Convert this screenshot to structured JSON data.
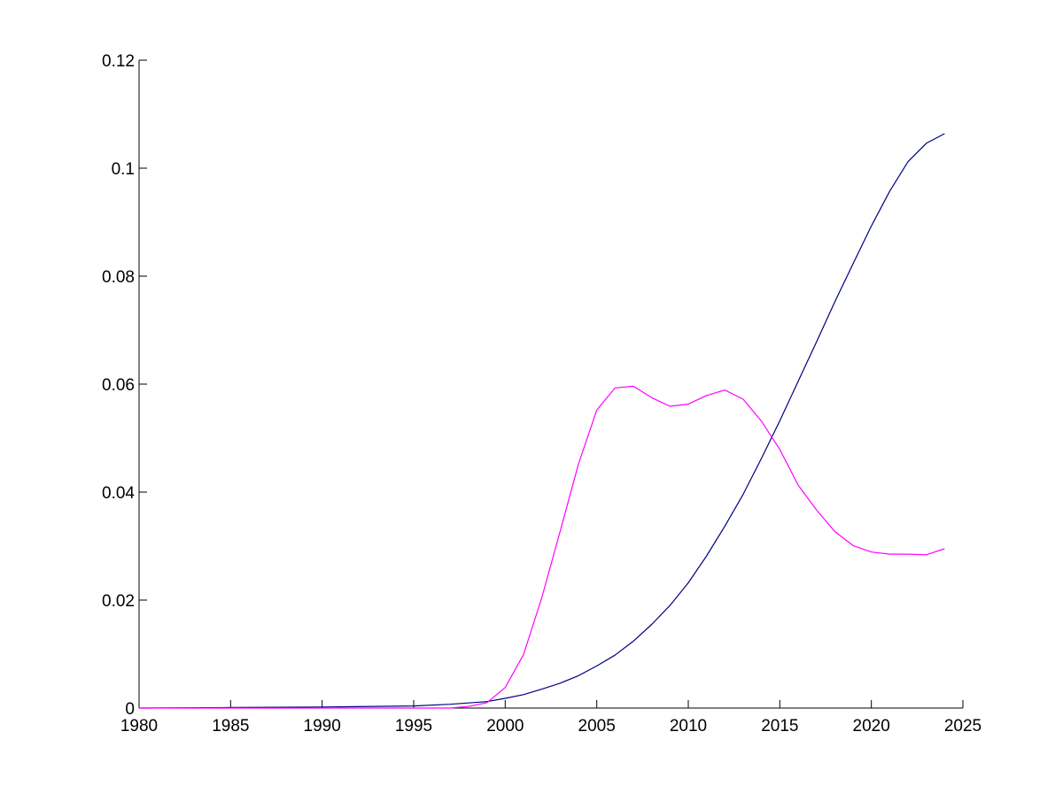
{
  "chart_data": {
    "type": "line",
    "title": "",
    "xlabel": "",
    "ylabel": "",
    "xlim": [
      1980,
      2025
    ],
    "ylim": [
      0,
      0.12
    ],
    "x_ticks": [
      1980,
      1985,
      1990,
      1995,
      2000,
      2005,
      2010,
      2015,
      2020,
      2025
    ],
    "y_ticks": [
      0,
      0.02,
      0.04,
      0.06,
      0.08,
      0.1,
      0.12
    ],
    "x_tick_labels": [
      "1980",
      "1985",
      "1990",
      "1995",
      "2000",
      "2005",
      "2010",
      "2015",
      "2020",
      "2025"
    ],
    "y_tick_labels": [
      "0",
      "0.02",
      "0.04",
      "0.06",
      "0.08",
      "0.1",
      "0.12"
    ],
    "grid": false,
    "legend": "none",
    "series": [
      {
        "color": "#00007f",
        "points": [
          [
            1980,
            0
          ],
          [
            1985,
            0.0001
          ],
          [
            1990,
            0.0002
          ],
          [
            1995,
            0.0004
          ],
          [
            1997,
            0.0007
          ],
          [
            1999,
            0.0012
          ],
          [
            2000,
            0.0018
          ],
          [
            2001,
            0.0025
          ],
          [
            2002,
            0.0035
          ],
          [
            2003,
            0.0046
          ],
          [
            2004,
            0.006
          ],
          [
            2005,
            0.0078
          ],
          [
            2006,
            0.0098
          ],
          [
            2007,
            0.0124
          ],
          [
            2008,
            0.0155
          ],
          [
            2009,
            0.019
          ],
          [
            2010,
            0.0232
          ],
          [
            2011,
            0.0282
          ],
          [
            2012,
            0.0337
          ],
          [
            2013,
            0.0396
          ],
          [
            2014,
            0.0463
          ],
          [
            2015,
            0.0532
          ],
          [
            2016,
            0.0605
          ],
          [
            2017,
            0.0678
          ],
          [
            2018,
            0.0752
          ],
          [
            2019,
            0.0823
          ],
          [
            2020,
            0.0893
          ],
          [
            2021,
            0.0957
          ],
          [
            2022,
            0.1012
          ],
          [
            2023,
            0.1046
          ],
          [
            2024,
            0.1064
          ]
        ]
      },
      {
        "color": "#ff00ff",
        "points": [
          [
            1980,
            0
          ],
          [
            1997,
            0
          ],
          [
            1998,
            0.0003
          ],
          [
            1999,
            0.001
          ],
          [
            2000,
            0.0038
          ],
          [
            2001,
            0.0099
          ],
          [
            2002,
            0.0205
          ],
          [
            2003,
            0.0327
          ],
          [
            2004,
            0.0452
          ],
          [
            2005,
            0.0552
          ],
          [
            2006,
            0.0593
          ],
          [
            2007,
            0.0596
          ],
          [
            2008,
            0.0575
          ],
          [
            2009,
            0.0559
          ],
          [
            2010,
            0.0563
          ],
          [
            2011,
            0.0579
          ],
          [
            2012,
            0.0589
          ],
          [
            2013,
            0.0572
          ],
          [
            2014,
            0.0531
          ],
          [
            2015,
            0.0479
          ],
          [
            2016,
            0.0413
          ],
          [
            2017,
            0.0367
          ],
          [
            2018,
            0.0327
          ],
          [
            2019,
            0.0301
          ],
          [
            2020,
            0.0289
          ],
          [
            2021,
            0.0285
          ],
          [
            2022,
            0.0285
          ],
          [
            2023,
            0.0284
          ],
          [
            2024,
            0.0295
          ]
        ]
      }
    ]
  }
}
